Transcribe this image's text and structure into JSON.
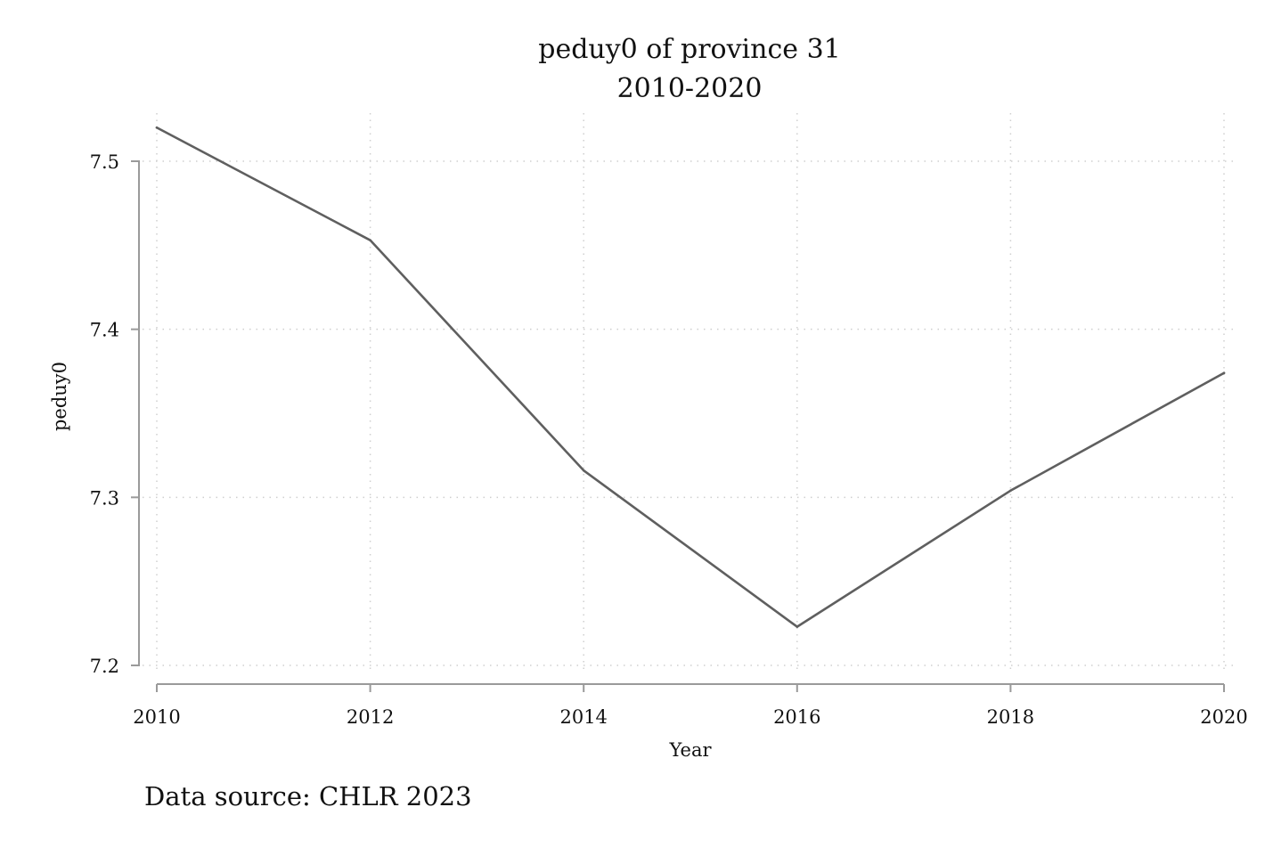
{
  "chart_data": {
    "type": "line",
    "title": "peduy0 of province 31",
    "subtitle": "2010-2020",
    "xlabel": "Year",
    "ylabel": "peduy0",
    "x": [
      2010,
      2012,
      2014,
      2016,
      2018,
      2020
    ],
    "series": [
      {
        "values": [
          7.52,
          7.453,
          7.316,
          7.223,
          7.304,
          7.374
        ],
        "color": "#5f5f5f"
      }
    ],
    "xticks": [
      "2010",
      "2012",
      "2014",
      "2016",
      "2018",
      "2020"
    ],
    "yticks": [
      "7.2",
      "7.3",
      "7.4",
      "7.5"
    ],
    "xlim": [
      2010,
      2020
    ],
    "ylim": [
      7.2,
      7.5
    ],
    "grid": true,
    "legend": "none",
    "note": "Data source: CHLR 2023"
  }
}
